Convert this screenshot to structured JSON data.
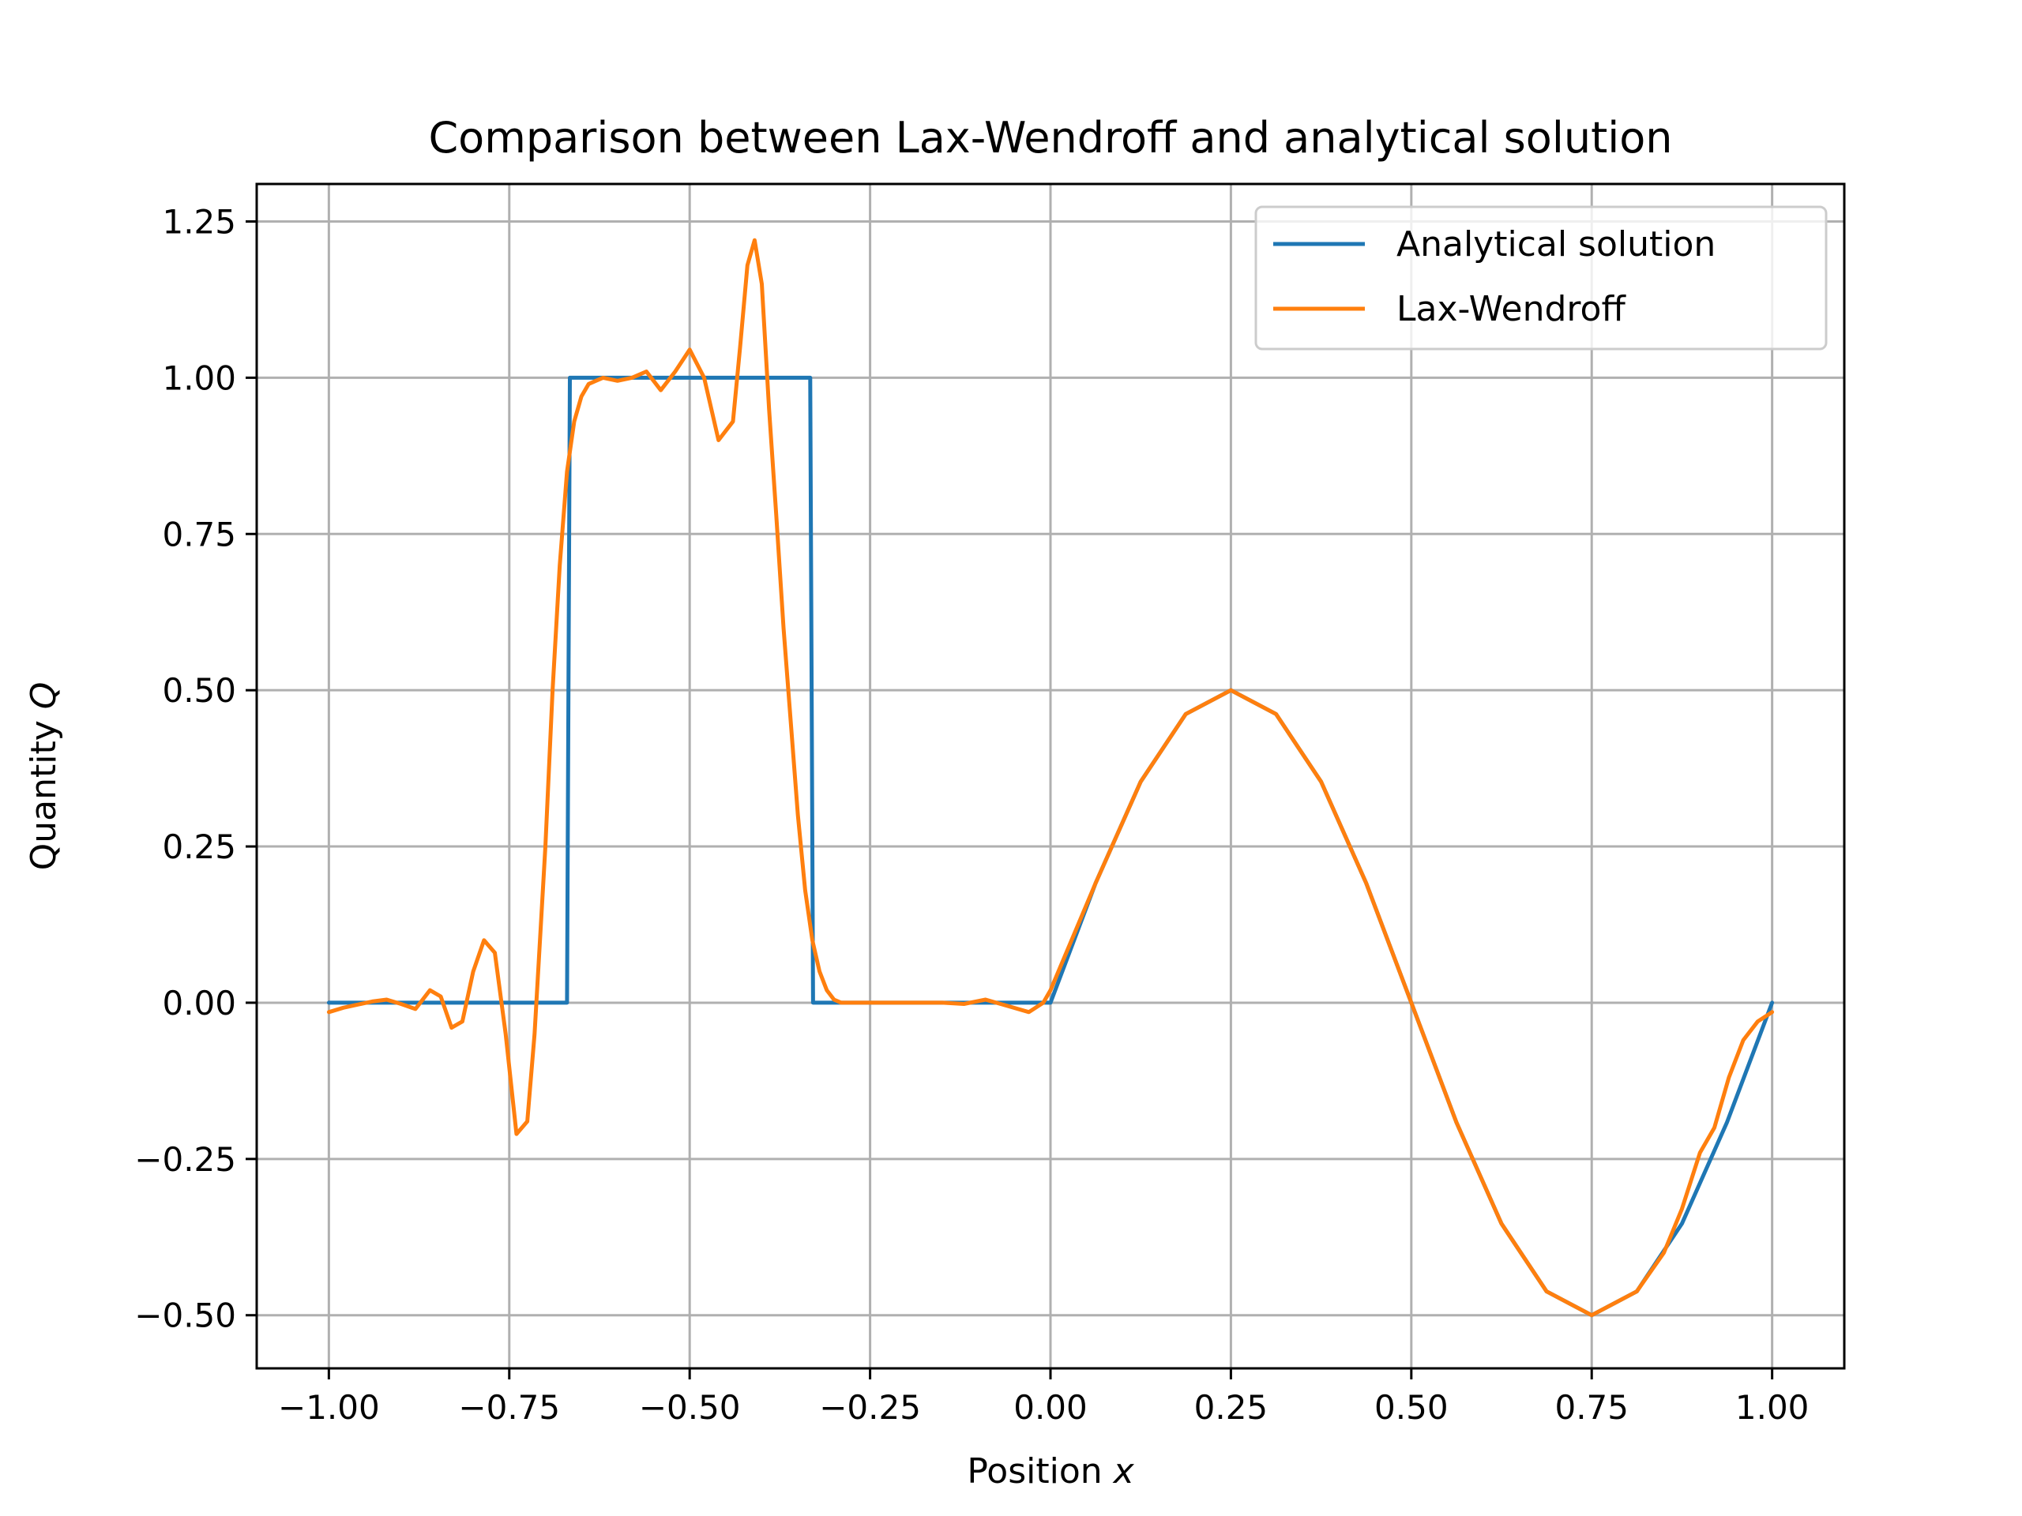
{
  "chart_data": {
    "type": "line",
    "title": "Comparison between Lax-Wendroff and analytical solution",
    "xlabel_prefix": "Position ",
    "xlabel_var": "x",
    "ylabel_prefix": "Quantity ",
    "ylabel_var": "Q",
    "xlim": [
      -1.1,
      1.1
    ],
    "ylim": [
      -0.585,
      1.31
    ],
    "xticks": [
      -1.0,
      -0.75,
      -0.5,
      -0.25,
      0.0,
      0.25,
      0.5,
      0.75,
      1.0
    ],
    "xtick_labels": [
      "−1.00",
      "−0.75",
      "−0.50",
      "−0.25",
      "0.00",
      "0.25",
      "0.50",
      "0.75",
      "1.00"
    ],
    "yticks": [
      -0.5,
      -0.25,
      0.0,
      0.25,
      0.5,
      0.75,
      1.0,
      1.25
    ],
    "ytick_labels": [
      "−0.50",
      "−0.25",
      "0.00",
      "0.25",
      "0.50",
      "0.75",
      "1.00",
      "1.25"
    ],
    "grid": true,
    "legend_position": "top-right",
    "series": [
      {
        "name": "Analytical solution",
        "color": "#1f77b4",
        "x": [
          -1.0,
          -0.67,
          -0.666,
          -0.333,
          -0.329,
          0.0,
          0.0625,
          0.125,
          0.1875,
          0.25,
          0.3125,
          0.375,
          0.4375,
          0.5,
          0.5625,
          0.625,
          0.6875,
          0.75,
          0.8125,
          0.875,
          0.9375,
          1.0
        ],
        "y": [
          0.0,
          0.0,
          1.0,
          1.0,
          0.0,
          0.0,
          0.1913,
          0.3536,
          0.4619,
          0.5,
          0.4619,
          0.3536,
          0.1913,
          0.0,
          -0.1913,
          -0.3536,
          -0.4619,
          -0.5,
          -0.4619,
          -0.3536,
          -0.1913,
          0.0
        ]
      },
      {
        "name": "Lax-Wendroff",
        "color": "#ff7f0e",
        "x": [
          -1.0,
          -0.98,
          -0.96,
          -0.94,
          -0.92,
          -0.9,
          -0.88,
          -0.86,
          -0.845,
          -0.83,
          -0.815,
          -0.8,
          -0.785,
          -0.77,
          -0.755,
          -0.74,
          -0.725,
          -0.715,
          -0.7,
          -0.69,
          -0.68,
          -0.67,
          -0.66,
          -0.65,
          -0.64,
          -0.63,
          -0.62,
          -0.6,
          -0.58,
          -0.56,
          -0.54,
          -0.52,
          -0.5,
          -0.48,
          -0.46,
          -0.44,
          -0.43,
          -0.42,
          -0.41,
          -0.4,
          -0.39,
          -0.38,
          -0.37,
          -0.36,
          -0.35,
          -0.34,
          -0.33,
          -0.32,
          -0.31,
          -0.3,
          -0.29,
          -0.27,
          -0.25,
          -0.2,
          -0.15,
          -0.12,
          -0.09,
          -0.06,
          -0.03,
          -0.01,
          0.0,
          0.0625,
          0.125,
          0.1875,
          0.25,
          0.3125,
          0.375,
          0.4375,
          0.5,
          0.5625,
          0.625,
          0.6875,
          0.75,
          0.8125,
          0.85,
          0.875,
          0.9,
          0.92,
          0.94,
          0.96,
          0.98,
          1.0
        ],
        "y": [
          -0.015,
          -0.008,
          -0.003,
          0.002,
          0.005,
          -0.002,
          -0.01,
          0.02,
          0.01,
          -0.04,
          -0.03,
          0.05,
          0.1,
          0.08,
          -0.05,
          -0.21,
          -0.19,
          -0.05,
          0.25,
          0.5,
          0.7,
          0.85,
          0.93,
          0.97,
          0.99,
          0.995,
          1.0,
          0.995,
          1.0,
          1.01,
          0.98,
          1.01,
          1.045,
          1.0,
          0.9,
          0.93,
          1.05,
          1.18,
          1.22,
          1.15,
          0.95,
          0.78,
          0.6,
          0.45,
          0.3,
          0.18,
          0.1,
          0.05,
          0.02,
          0.005,
          0.0,
          0.0,
          0.0,
          0.0,
          0.0,
          -0.002,
          0.005,
          -0.005,
          -0.015,
          0.0,
          0.02,
          0.1913,
          0.3536,
          0.4619,
          0.5,
          0.4619,
          0.3536,
          0.1913,
          0.0,
          -0.1913,
          -0.3536,
          -0.4619,
          -0.5,
          -0.4619,
          -0.4,
          -0.33,
          -0.24,
          -0.2,
          -0.12,
          -0.06,
          -0.03,
          -0.015
        ]
      }
    ]
  }
}
